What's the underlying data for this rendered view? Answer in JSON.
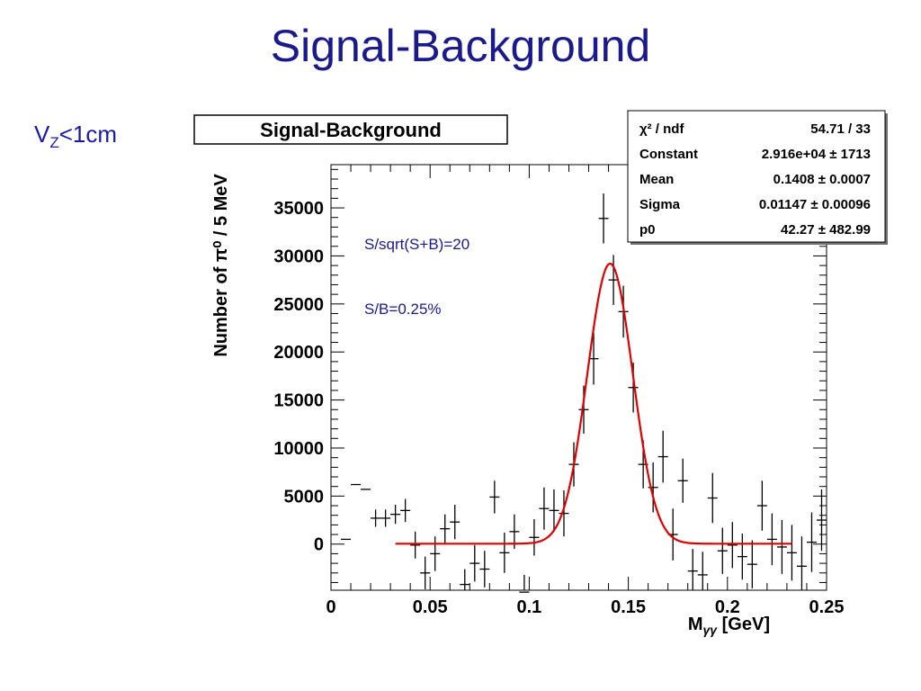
{
  "slide": {
    "title": "Signal-Background",
    "vz_main": "V",
    "vz_sub": "Z",
    "vz_rest": "<1cm"
  },
  "chart_data": {
    "type": "scatter",
    "title": "Signal-Background",
    "xlabel_main": "M",
    "xlabel_sub": "γγ",
    "xlabel_unit": " [GeV]",
    "ylabel": "Number of π⁰ / 5 MeV",
    "xlim": [
      0,
      0.25
    ],
    "ylim": [
      -4800,
      39500
    ],
    "x_ticks": [
      0,
      0.05,
      0.1,
      0.15,
      0.2,
      0.25
    ],
    "x_tick_labels": [
      "0",
      "0.05",
      "0.1",
      "0.15",
      "0.2",
      "0.25"
    ],
    "y_ticks": [
      0,
      5000,
      10000,
      15000,
      20000,
      25000,
      30000,
      35000
    ],
    "y_tick_labels": [
      "0",
      "5000",
      "10000",
      "15000",
      "20000",
      "25000",
      "30000",
      "35000"
    ],
    "annotations": [
      "S/sqrt(S+B)=20",
      "S/B=0.25%"
    ],
    "annotation_color": "#1a1a8c",
    "data_color": "#000000",
    "fit_color": "#e00000",
    "stats": [
      {
        "label": "χ² / ndf",
        "value": "54.71 / 33"
      },
      {
        "label": "Constant",
        "value": "2.916e+04 ± 1713"
      },
      {
        "label": "Mean",
        "value": "0.1408 ± 0.0007"
      },
      {
        "label": "Sigma",
        "value": "0.01147 ± 0.00096"
      },
      {
        "label": "p0",
        "value": "42.27 ± 482.99"
      }
    ],
    "fit": {
      "constant": 29160,
      "mean": 0.1408,
      "sigma": 0.01147,
      "p0": 42.27,
      "x_range": [
        0.0325,
        0.2325
      ]
    },
    "points": {
      "x": [
        0.0075,
        0.0125,
        0.0175,
        0.0225,
        0.0275,
        0.0325,
        0.0375,
        0.0425,
        0.0475,
        0.0525,
        0.0575,
        0.0625,
        0.0675,
        0.0725,
        0.0775,
        0.0825,
        0.0875,
        0.0925,
        0.0975,
        0.1025,
        0.1075,
        0.1125,
        0.1175,
        0.1225,
        0.1275,
        0.1325,
        0.1375,
        0.1425,
        0.1475,
        0.1525,
        0.1575,
        0.1625,
        0.1675,
        0.1725,
        0.1775,
        0.1825,
        0.1875,
        0.1925,
        0.1975,
        0.2025,
        0.2075,
        0.2125,
        0.2175,
        0.2225,
        0.2275,
        0.2325,
        0.2375,
        0.2425,
        0.2475
      ],
      "y": [
        500,
        6200,
        5700,
        2700,
        2700,
        3100,
        3500,
        -100,
        -3000,
        -1000,
        1600,
        2300,
        -4200,
        -2000,
        -2600,
        4900,
        -900,
        1300,
        -5000,
        700,
        3700,
        3500,
        3200,
        8300,
        14000,
        19300,
        33900,
        27500,
        24200,
        16300,
        8300,
        5900,
        9100,
        1000,
        6600,
        -2800,
        -3200,
        4800,
        -700,
        -100,
        -1300,
        -2100,
        4000,
        500,
        -300,
        -900,
        -2300,
        200,
        2500
      ],
      "err": [
        0,
        0,
        0,
        900,
        900,
        1000,
        1200,
        1400,
        1700,
        1800,
        1500,
        1800,
        1600,
        1900,
        1900,
        1700,
        2100,
        1800,
        1800,
        1900,
        2200,
        2200,
        2400,
        2300,
        2500,
        2700,
        2600,
        2600,
        2700,
        2600,
        2500,
        2600,
        2700,
        2700,
        2300,
        2300,
        2400,
        2600,
        2400,
        2400,
        2400,
        2500,
        2600,
        2700,
        2800,
        2900,
        3100,
        3100,
        3200
      ]
    }
  }
}
